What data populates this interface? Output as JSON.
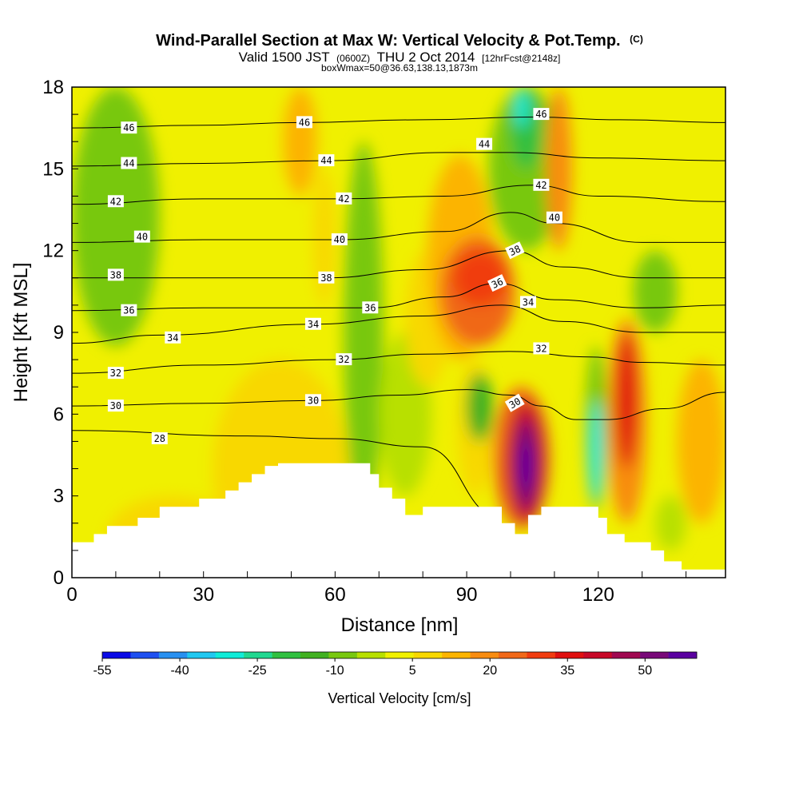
{
  "chart_data": {
    "type": "heatmap",
    "title": "Wind-Parallel Section at Max W: Vertical Velocity & Pot.Temp.",
    "title_mark": "(C)",
    "subtitle_parts": [
      "Valid 1500 JST",
      "(0600Z)",
      "THU 2 Oct 2014",
      "[12hrFcst@2148z]"
    ],
    "subtitle2": "boxWmax=50@36.63,138.13,1873m",
    "xlabel": "Distance [nm]",
    "ylabel": "Height [Kft MSL]",
    "xlim": [
      0,
      149
    ],
    "ylim": [
      0,
      18
    ],
    "xticks": [
      0,
      30,
      60,
      90,
      120
    ],
    "yticks": [
      0,
      3,
      6,
      9,
      12,
      15,
      18
    ],
    "colorbar": {
      "label": "Vertical Velocity [cm/s]",
      "range": [
        -55,
        60
      ],
      "tick_values": [
        -55,
        -40,
        -25,
        -10,
        5,
        20,
        35,
        50
      ],
      "colors": [
        "#0a0ae6",
        "#1e50f0",
        "#2890f0",
        "#20c8f0",
        "#10ecd8",
        "#20d890",
        "#30c040",
        "#40b020",
        "#78c810",
        "#b8e000",
        "#f0f000",
        "#f8d800",
        "#fcb400",
        "#f88c10",
        "#f06818",
        "#f03c10",
        "#e01010",
        "#c80828",
        "#a00850",
        "#780878",
        "#5a00a0"
      ]
    },
    "terrain_profile": [
      [
        0,
        1.3
      ],
      [
        5,
        1.3
      ],
      [
        5,
        1.6
      ],
      [
        8,
        1.6
      ],
      [
        8,
        1.9
      ],
      [
        15,
        1.9
      ],
      [
        15,
        2.2
      ],
      [
        20,
        2.2
      ],
      [
        20,
        2.6
      ],
      [
        29,
        2.6
      ],
      [
        29,
        2.9
      ],
      [
        35,
        2.9
      ],
      [
        35,
        3.2
      ],
      [
        38,
        3.2
      ],
      [
        38,
        3.5
      ],
      [
        41,
        3.5
      ],
      [
        41,
        3.8
      ],
      [
        44,
        3.8
      ],
      [
        44,
        4.1
      ],
      [
        47,
        4.1
      ],
      [
        47,
        4.2
      ],
      [
        68,
        4.2
      ],
      [
        68,
        3.8
      ],
      [
        70,
        3.8
      ],
      [
        70,
        3.3
      ],
      [
        73,
        3.3
      ],
      [
        73,
        2.9
      ],
      [
        76,
        2.9
      ],
      [
        76,
        2.3
      ],
      [
        80,
        2.3
      ],
      [
        80,
        2.6
      ],
      [
        98,
        2.6
      ],
      [
        98,
        2.0
      ],
      [
        101,
        2.0
      ],
      [
        101,
        1.6
      ],
      [
        104,
        1.6
      ],
      [
        104,
        2.3
      ],
      [
        107,
        2.3
      ],
      [
        107,
        2.6
      ],
      [
        120,
        2.6
      ],
      [
        120,
        2.2
      ],
      [
        122,
        2.2
      ],
      [
        122,
        1.6
      ],
      [
        126,
        1.6
      ],
      [
        126,
        1.3
      ],
      [
        132,
        1.3
      ],
      [
        132,
        1.0
      ],
      [
        135,
        1.0
      ],
      [
        135,
        0.6
      ],
      [
        139,
        0.6
      ],
      [
        139,
        0.3
      ],
      [
        149,
        0.3
      ]
    ],
    "w_cells": [
      {
        "x": [
          0,
          149
        ],
        "z": [
          0,
          18
        ],
        "w": 0
      },
      {
        "x": [
          8,
          38
        ],
        "z": [
          0,
          3
        ],
        "w": 6
      },
      {
        "x": [
          7,
          60
        ],
        "z": [
          3,
          8.5
        ],
        "w": 5
      },
      {
        "x": [
          32,
          63
        ],
        "z": [
          0,
          8
        ],
        "w": 9
      },
      {
        "x": [
          0,
          20
        ],
        "z": [
          8.5,
          18
        ],
        "w": -7
      },
      {
        "x": [
          40,
          58
        ],
        "z": [
          12,
          18
        ],
        "w": 4
      },
      {
        "x": [
          48,
          56
        ],
        "z": [
          14,
          18
        ],
        "w": 14
      },
      {
        "x": [
          55,
          60
        ],
        "z": [
          10,
          15
        ],
        "w": 7
      },
      {
        "x": [
          62,
          71
        ],
        "z": [
          2,
          16
        ],
        "w": -7
      },
      {
        "x": [
          70,
          82
        ],
        "z": [
          3,
          9
        ],
        "w": -4
      },
      {
        "x": [
          76,
          86
        ],
        "z": [
          7,
          12
        ],
        "w": 8
      },
      {
        "x": [
          81,
          96
        ],
        "z": [
          8,
          15.5
        ],
        "w": 14
      },
      {
        "x": [
          84,
          101
        ],
        "z": [
          8.5,
          12.5
        ],
        "w": 24
      },
      {
        "x": [
          87,
          99
        ],
        "z": [
          10,
          12
        ],
        "w": 32
      },
      {
        "x": [
          88,
          96
        ],
        "z": [
          3,
          8
        ],
        "w": 10
      },
      {
        "x": [
          90,
          96
        ],
        "z": [
          5,
          7.5
        ],
        "w": -12
      },
      {
        "x": [
          96,
          109
        ],
        "z": [
          1.8,
          7
        ],
        "w": 26
      },
      {
        "x": [
          99,
          108
        ],
        "z": [
          2,
          6.5
        ],
        "w": 40
      },
      {
        "x": [
          101,
          106
        ],
        "z": [
          2.5,
          5.8
        ],
        "w": 52
      },
      {
        "x": [
          102,
          105
        ],
        "z": [
          3.2,
          5
        ],
        "w": 60
      },
      {
        "x": [
          95,
          112
        ],
        "z": [
          12,
          18
        ],
        "w": -10
      },
      {
        "x": [
          100,
          107
        ],
        "z": [
          15,
          18
        ],
        "w": -22
      },
      {
        "x": [
          101,
          104
        ],
        "z": [
          16.5,
          18
        ],
        "w": -30
      },
      {
        "x": [
          108,
          114
        ],
        "z": [
          12,
          18
        ],
        "w": 18
      },
      {
        "x": [
          117,
          122
        ],
        "z": [
          2.5,
          8.5
        ],
        "w": -10
      },
      {
        "x": [
          118,
          121
        ],
        "z": [
          2.8,
          6.5
        ],
        "w": -28
      },
      {
        "x": [
          122,
          131
        ],
        "z": [
          2,
          9.5
        ],
        "w": 18
      },
      {
        "x": [
          124,
          129
        ],
        "z": [
          4,
          9
        ],
        "w": 34
      },
      {
        "x": [
          128,
          138
        ],
        "z": [
          9,
          12
        ],
        "w": -8
      },
      {
        "x": [
          138,
          149
        ],
        "z": [
          2,
          8
        ],
        "w": 14
      },
      {
        "x": [
          133,
          140
        ],
        "z": [
          1,
          3
        ],
        "w": -5
      }
    ],
    "theta_contours": [
      {
        "level": 28,
        "label_at": [
          20,
          5.1
        ],
        "pts": [
          [
            0,
            5.4
          ],
          [
            40,
            5.2
          ],
          [
            60,
            5.1
          ],
          [
            80,
            4.8
          ],
          [
            98,
            2.2
          ]
        ]
      },
      {
        "level": 30,
        "label_at": [
          55,
          6.5
        ],
        "pts": [
          [
            0,
            6.3
          ],
          [
            30,
            6.4
          ],
          [
            55,
            6.5
          ],
          [
            75,
            6.7
          ],
          [
            90,
            6.9
          ],
          [
            100,
            6.7
          ],
          [
            107,
            6.3
          ],
          [
            115,
            5.8
          ],
          [
            122,
            5.8
          ],
          [
            135,
            6.2
          ],
          [
            149,
            6.8
          ]
        ]
      },
      {
        "level": 32,
        "label_at": [
          60,
          8.0
        ],
        "pts": [
          [
            0,
            7.5
          ],
          [
            30,
            7.8
          ],
          [
            60,
            8.0
          ],
          [
            80,
            8.2
          ],
          [
            100,
            8.3
          ],
          [
            118,
            8.1
          ],
          [
            130,
            7.9
          ],
          [
            149,
            7.8
          ]
        ]
      },
      {
        "level": 34,
        "label_at": [
          55,
          9.3
        ],
        "pts": [
          [
            0,
            8.6
          ],
          [
            20,
            8.9
          ],
          [
            55,
            9.3
          ],
          [
            80,
            9.6
          ],
          [
            98,
            10.0
          ],
          [
            112,
            9.4
          ],
          [
            130,
            9.0
          ],
          [
            149,
            9.0
          ]
        ]
      },
      {
        "level": 36,
        "label_at": [
          68,
          9.9
        ],
        "pts": [
          [
            0,
            9.8
          ],
          [
            30,
            9.9
          ],
          [
            68,
            9.9
          ],
          [
            85,
            10.3
          ],
          [
            97,
            10.8
          ],
          [
            110,
            10.2
          ],
          [
            130,
            9.9
          ],
          [
            149,
            10.0
          ]
        ]
      },
      {
        "level": 38,
        "label_at": [
          58,
          11.0
        ],
        "pts": [
          [
            0,
            11.0
          ],
          [
            30,
            11.0
          ],
          [
            58,
            11.0
          ],
          [
            80,
            11.3
          ],
          [
            100,
            12.0
          ],
          [
            112,
            11.4
          ],
          [
            130,
            11.0
          ],
          [
            149,
            11.0
          ]
        ]
      },
      {
        "level": 40,
        "label_at": [
          61,
          12.4
        ],
        "pts": [
          [
            0,
            12.3
          ],
          [
            30,
            12.4
          ],
          [
            61,
            12.4
          ],
          [
            85,
            12.7
          ],
          [
            100,
            13.4
          ],
          [
            110,
            13.0
          ],
          [
            130,
            12.3
          ],
          [
            149,
            12.3
          ]
        ]
      },
      {
        "level": 42,
        "label_at": [
          61,
          13.9
        ],
        "pts": [
          [
            0,
            13.7
          ],
          [
            30,
            13.9
          ],
          [
            61,
            13.9
          ],
          [
            85,
            14.0
          ],
          [
            105,
            14.4
          ],
          [
            120,
            14.0
          ],
          [
            149,
            13.8
          ]
        ]
      },
      {
        "level": 44,
        "label_at": [
          58,
          15.3
        ],
        "pts": [
          [
            0,
            15.1
          ],
          [
            30,
            15.2
          ],
          [
            58,
            15.3
          ],
          [
            85,
            15.6
          ],
          [
            100,
            15.6
          ],
          [
            120,
            15.4
          ],
          [
            149,
            15.3
          ]
        ]
      },
      {
        "level": 46,
        "label_at": [
          52,
          16.7
        ],
        "pts": [
          [
            0,
            16.5
          ],
          [
            30,
            16.6
          ],
          [
            52,
            16.7
          ],
          [
            80,
            16.8
          ],
          [
            105,
            16.9
          ],
          [
            125,
            16.8
          ],
          [
            149,
            16.7
          ]
        ]
      }
    ],
    "contour_labels": [
      {
        "text": "46",
        "x": 13,
        "z": 16.5,
        "rot": 0
      },
      {
        "text": "46",
        "x": 53,
        "z": 16.7,
        "rot": 0
      },
      {
        "text": "46",
        "x": 107,
        "z": 17.0,
        "rot": 0
      },
      {
        "text": "44",
        "x": 13,
        "z": 15.2,
        "rot": 0
      },
      {
        "text": "44",
        "x": 58,
        "z": 15.3,
        "rot": 0
      },
      {
        "text": "44",
        "x": 94,
        "z": 15.9,
        "rot": 0
      },
      {
        "text": "42",
        "x": 10,
        "z": 13.8,
        "rot": 0
      },
      {
        "text": "42",
        "x": 62,
        "z": 13.9,
        "rot": 0
      },
      {
        "text": "42",
        "x": 107,
        "z": 14.4,
        "rot": 0
      },
      {
        "text": "40",
        "x": 16,
        "z": 12.5,
        "rot": 0
      },
      {
        "text": "40",
        "x": 61,
        "z": 12.4,
        "rot": 0
      },
      {
        "text": "40",
        "x": 110,
        "z": 13.2,
        "rot": 0
      },
      {
        "text": "38",
        "x": 10,
        "z": 11.1,
        "rot": 0
      },
      {
        "text": "38",
        "x": 58,
        "z": 11.0,
        "rot": 0
      },
      {
        "text": "38",
        "x": 101,
        "z": 12.0,
        "rot": -25
      },
      {
        "text": "36",
        "x": 13,
        "z": 9.8,
        "rot": 0
      },
      {
        "text": "36",
        "x": 68,
        "z": 9.9,
        "rot": 0
      },
      {
        "text": "36",
        "x": 97,
        "z": 10.8,
        "rot": -25
      },
      {
        "text": "34",
        "x": 23,
        "z": 8.8,
        "rot": 0
      },
      {
        "text": "34",
        "x": 55,
        "z": 9.3,
        "rot": 0
      },
      {
        "text": "34",
        "x": 104,
        "z": 10.1,
        "rot": 0
      },
      {
        "text": "32",
        "x": 10,
        "z": 7.5,
        "rot": 0
      },
      {
        "text": "32",
        "x": 62,
        "z": 8.0,
        "rot": 0
      },
      {
        "text": "32",
        "x": 107,
        "z": 8.4,
        "rot": 0
      },
      {
        "text": "30",
        "x": 10,
        "z": 6.3,
        "rot": 0
      },
      {
        "text": "30",
        "x": 55,
        "z": 6.5,
        "rot": 0
      },
      {
        "text": "30",
        "x": 101,
        "z": 6.4,
        "rot": -30
      },
      {
        "text": "28",
        "x": 20,
        "z": 5.1,
        "rot": 0
      }
    ]
  }
}
